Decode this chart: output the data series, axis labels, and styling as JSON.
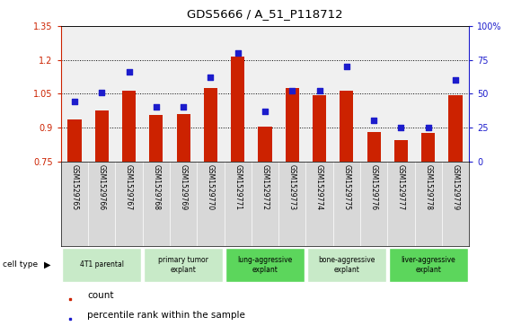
{
  "title": "GDS5666 / A_51_P118712",
  "samples": [
    "GSM1529765",
    "GSM1529766",
    "GSM1529767",
    "GSM1529768",
    "GSM1529769",
    "GSM1529770",
    "GSM1529771",
    "GSM1529772",
    "GSM1529773",
    "GSM1529774",
    "GSM1529775",
    "GSM1529776",
    "GSM1529777",
    "GSM1529778",
    "GSM1529779"
  ],
  "counts": [
    0.935,
    0.975,
    1.065,
    0.955,
    0.96,
    1.075,
    1.215,
    0.905,
    1.075,
    1.045,
    1.065,
    0.88,
    0.845,
    0.875,
    1.045
  ],
  "percentiles": [
    44,
    51,
    66,
    40,
    40,
    62,
    80,
    37,
    52,
    52,
    70,
    30,
    25,
    25,
    60
  ],
  "cell_types": [
    {
      "label": "4T1 parental",
      "start": 0,
      "end": 2,
      "color": "#c8eac8"
    },
    {
      "label": "primary tumor\nexplant",
      "start": 3,
      "end": 5,
      "color": "#c8eac8"
    },
    {
      "label": "lung-aggressive\nexplant",
      "start": 6,
      "end": 8,
      "color": "#5cd65c"
    },
    {
      "label": "bone-aggressive\nexplant",
      "start": 9,
      "end": 11,
      "color": "#c8eac8"
    },
    {
      "label": "liver-aggressive\nexplant",
      "start": 12,
      "end": 14,
      "color": "#5cd65c"
    }
  ],
  "ylim_left": [
    0.75,
    1.35
  ],
  "ylim_right": [
    0,
    100
  ],
  "yticks_left": [
    0.75,
    0.9,
    1.05,
    1.2,
    1.35
  ],
  "ytick_labels_left": [
    "0.75",
    "0.9",
    "1.05",
    "1.2",
    "1.35"
  ],
  "yticks_right": [
    0,
    25,
    50,
    75,
    100
  ],
  "ytick_labels_right": [
    "0",
    "25",
    "50",
    "75",
    "100%"
  ],
  "bar_color": "#cc2200",
  "dot_color": "#1c1ccc",
  "bar_width": 0.5,
  "bg_color": "#ffffff",
  "plot_bg": "#f0f0f0"
}
